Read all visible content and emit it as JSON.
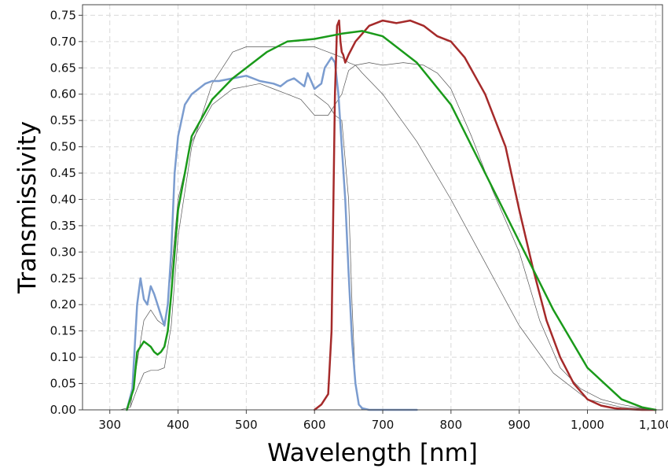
{
  "chart_data": {
    "type": "line",
    "title": "",
    "xlabel": "Wavelength [nm]",
    "ylabel": "Transmissivity",
    "xlim": [
      260,
      1110
    ],
    "ylim": [
      0,
      0.77
    ],
    "xticks": [
      300,
      400,
      500,
      600,
      700,
      800,
      900,
      1000,
      1100
    ],
    "xtick_labels": [
      "300",
      "400",
      "500",
      "600",
      "700",
      "800",
      "900",
      "1,000",
      "1,100"
    ],
    "yticks": [
      0,
      0.05,
      0.1,
      0.15,
      0.2,
      0.25,
      0.3,
      0.35,
      0.4,
      0.45,
      0.5,
      0.55,
      0.6,
      0.65,
      0.7,
      0.75
    ],
    "ytick_labels": [
      "0.00",
      "0.05",
      "0.10",
      "0.15",
      "0.20",
      "0.25",
      "0.30",
      "0.35",
      "0.40",
      "0.45",
      "0.50",
      "0.55",
      "0.60",
      "0.65",
      "0.70",
      "0.75"
    ],
    "grid": true,
    "series": [
      {
        "name": "gray-thin-a",
        "color": "#555555",
        "width": 0.7,
        "x": [
          315,
          330,
          340,
          350,
          360,
          370,
          380,
          390,
          400,
          420,
          450,
          480,
          500,
          510,
          520,
          530,
          540,
          550,
          560,
          570,
          580,
          590,
          600,
          610,
          620,
          630,
          640,
          650,
          660,
          670,
          700,
          750,
          800,
          850,
          900,
          950,
          1000,
          1050,
          1100
        ],
        "y": [
          0.0,
          0.005,
          0.04,
          0.07,
          0.075,
          0.075,
          0.08,
          0.16,
          0.33,
          0.5,
          0.62,
          0.68,
          0.69,
          0.69,
          0.69,
          0.69,
          0.69,
          0.69,
          0.69,
          0.69,
          0.69,
          0.69,
          0.69,
          0.685,
          0.68,
          0.675,
          0.67,
          0.66,
          0.655,
          0.64,
          0.6,
          0.51,
          0.4,
          0.28,
          0.16,
          0.07,
          0.02,
          0.005,
          0.0
        ]
      },
      {
        "name": "gray-thin-b",
        "color": "#555555",
        "width": 0.7,
        "x": [
          330,
          340,
          350,
          360,
          370,
          380,
          390,
          400,
          420,
          450,
          480,
          500,
          520,
          540,
          560,
          580,
          600,
          620,
          640,
          650,
          660,
          680,
          700,
          730,
          760,
          780,
          800,
          830,
          860,
          900,
          930,
          960,
          990,
          1020,
          1050,
          1080,
          1100
        ],
        "y": [
          0.005,
          0.09,
          0.17,
          0.19,
          0.17,
          0.16,
          0.26,
          0.4,
          0.51,
          0.58,
          0.61,
          0.615,
          0.62,
          0.61,
          0.6,
          0.59,
          0.56,
          0.56,
          0.6,
          0.645,
          0.655,
          0.66,
          0.655,
          0.66,
          0.655,
          0.64,
          0.61,
          0.52,
          0.42,
          0.3,
          0.17,
          0.08,
          0.04,
          0.02,
          0.01,
          0.003,
          0.0
        ]
      },
      {
        "name": "gray-thin-c",
        "color": "#555555",
        "width": 0.7,
        "x": [
          600,
          620,
          630,
          640,
          650,
          655,
          660,
          665,
          670,
          680
        ],
        "y": [
          0.6,
          0.58,
          0.56,
          0.55,
          0.4,
          0.2,
          0.05,
          0.01,
          0.0,
          0.0
        ]
      },
      {
        "name": "blue",
        "color": "#7b9ccf",
        "width": 2.5,
        "x": [
          325,
          333,
          340,
          345,
          350,
          355,
          360,
          365,
          370,
          375,
          380,
          385,
          390,
          395,
          400,
          410,
          420,
          440,
          450,
          460,
          480,
          500,
          520,
          540,
          550,
          560,
          570,
          580,
          585,
          590,
          595,
          600,
          610,
          615,
          620,
          625,
          630,
          635,
          640,
          645,
          650,
          655,
          660,
          665,
          670,
          680,
          700,
          750
        ],
        "y": [
          0.0,
          0.04,
          0.2,
          0.25,
          0.21,
          0.2,
          0.235,
          0.22,
          0.2,
          0.18,
          0.16,
          0.2,
          0.3,
          0.45,
          0.52,
          0.58,
          0.6,
          0.62,
          0.625,
          0.625,
          0.63,
          0.635,
          0.625,
          0.62,
          0.615,
          0.625,
          0.63,
          0.62,
          0.615,
          0.64,
          0.625,
          0.61,
          0.62,
          0.65,
          0.66,
          0.67,
          0.66,
          0.6,
          0.5,
          0.4,
          0.26,
          0.13,
          0.05,
          0.01,
          0.003,
          0.0,
          0.0,
          0.0
        ]
      },
      {
        "name": "red",
        "color": "#a52a2a",
        "width": 2.5,
        "x": [
          600,
          610,
          620,
          625,
          630,
          633,
          636,
          638,
          640,
          642,
          645,
          650,
          660,
          680,
          700,
          720,
          740,
          760,
          780,
          800,
          820,
          850,
          880,
          900,
          920,
          940,
          960,
          980,
          1000,
          1020,
          1040,
          1060,
          1080,
          1100
        ],
        "y": [
          0.0,
          0.01,
          0.03,
          0.15,
          0.6,
          0.73,
          0.74,
          0.7,
          0.68,
          0.675,
          0.66,
          0.675,
          0.7,
          0.73,
          0.74,
          0.735,
          0.74,
          0.73,
          0.71,
          0.7,
          0.67,
          0.6,
          0.5,
          0.38,
          0.27,
          0.17,
          0.1,
          0.05,
          0.02,
          0.008,
          0.003,
          0.001,
          0.0,
          0.0
        ]
      },
      {
        "name": "green",
        "color": "#1a9a1a",
        "width": 2.5,
        "x": [
          325,
          335,
          340,
          345,
          350,
          355,
          360,
          365,
          370,
          375,
          380,
          385,
          390,
          400,
          420,
          450,
          480,
          500,
          530,
          560,
          600,
          640,
          670,
          700,
          750,
          800,
          850,
          900,
          950,
          1000,
          1050,
          1080,
          1100
        ],
        "y": [
          0.0,
          0.04,
          0.11,
          0.12,
          0.13,
          0.125,
          0.12,
          0.11,
          0.105,
          0.11,
          0.12,
          0.15,
          0.22,
          0.38,
          0.52,
          0.59,
          0.63,
          0.65,
          0.68,
          0.7,
          0.705,
          0.715,
          0.72,
          0.71,
          0.66,
          0.58,
          0.45,
          0.32,
          0.19,
          0.08,
          0.02,
          0.005,
          0.0
        ]
      }
    ]
  }
}
